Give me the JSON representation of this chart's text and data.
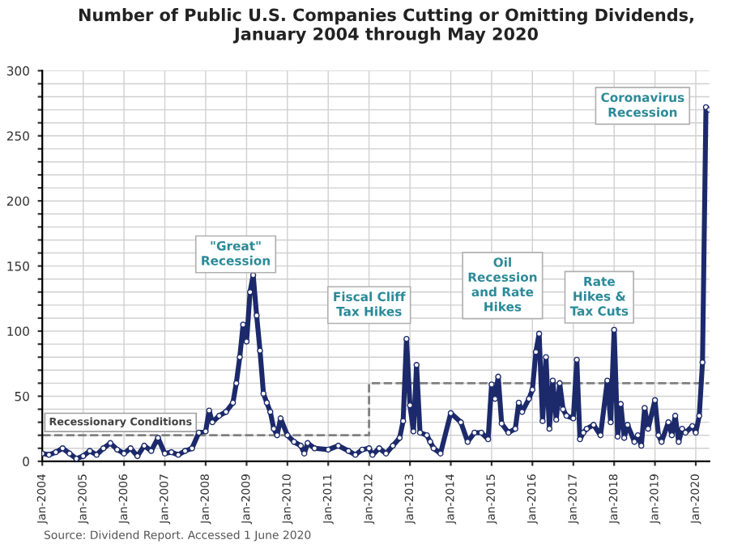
{
  "chart_data": {
    "type": "line",
    "title": "Number of Public U.S. Companies Cutting or Omitting Dividends,\nJanuary 2004 through May 2020",
    "xlim": [
      "2004-01",
      "2020-05"
    ],
    "xticks": [
      {
        "value": "2004-01",
        "label": "Jan-2004"
      },
      {
        "value": "2005-01",
        "label": "Jan-2005"
      },
      {
        "value": "2006-01",
        "label": "Jan-2006"
      },
      {
        "value": "2007-01",
        "label": "Jan-2007"
      },
      {
        "value": "2008-01",
        "label": "Jan-2008"
      },
      {
        "value": "2009-01",
        "label": "Jan-2009"
      },
      {
        "value": "2010-01",
        "label": "Jan-2010"
      },
      {
        "value": "2011-01",
        "label": "Jan-2011"
      },
      {
        "value": "2012-01",
        "label": "Jan-2012"
      },
      {
        "value": "2013-01",
        "label": "Jan-2013"
      },
      {
        "value": "2014-01",
        "label": "Jan-2014"
      },
      {
        "value": "2015-01",
        "label": "Jan-2015"
      },
      {
        "value": "2016-01",
        "label": "Jan-2016"
      },
      {
        "value": "2017-01",
        "label": "Jan-2017"
      },
      {
        "value": "2018-01",
        "label": "Jan-2018"
      },
      {
        "value": "2019-01",
        "label": "Jan-2019"
      },
      {
        "value": "2020-01",
        "label": "Jan-2020"
      }
    ],
    "ylim": [
      0,
      300
    ],
    "yticks": [
      0,
      {
        "value": 10,
        "label": null
      },
      {
        "value": 20,
        "label": null
      },
      {
        "value": 30,
        "label": null
      },
      {
        "value": 40,
        "label": null
      },
      50,
      {
        "value": 60,
        "label": null
      },
      {
        "value": 70,
        "label": null
      },
      {
        "value": 80,
        "label": null
      },
      {
        "value": 90,
        "label": null
      },
      100,
      {
        "value": 110,
        "label": null
      },
      {
        "value": 120,
        "label": null
      },
      {
        "value": 130,
        "label": null
      },
      {
        "value": 140,
        "label": null
      },
      150,
      {
        "value": 160,
        "label": null
      },
      {
        "value": 170,
        "label": null
      },
      {
        "value": 180,
        "label": null
      },
      {
        "value": 190,
        "label": null
      },
      200,
      {
        "value": 210,
        "label": null
      },
      {
        "value": 220,
        "label": null
      },
      {
        "value": 230,
        "label": null
      },
      {
        "value": 240,
        "label": null
      },
      250,
      {
        "value": 260,
        "label": null
      },
      {
        "value": 270,
        "label": null
      },
      {
        "value": 280,
        "label": null
      },
      {
        "value": 290,
        "label": null
      },
      300
    ],
    "grid": true,
    "series": [
      {
        "color": "#1c2a6b",
        "marker": "circle",
        "line_style": "solid",
        "x": [
          "2004-01",
          "2004-03",
          "2004-05",
          "2004-07",
          "2004-09",
          "2004-11",
          "2005-01",
          "2005-03",
          "2005-05",
          "2005-07",
          "2005-09",
          "2005-11",
          "2006-01",
          "2006-03",
          "2006-05",
          "2006-07",
          "2006-09",
          "2006-11",
          "2007-01",
          "2007-03",
          "2007-05",
          "2007-07",
          "2007-09",
          "2007-11",
          "2008-01",
          "2008-02",
          "2008-03",
          "2008-05",
          "2008-07",
          "2008-09",
          "2008-10",
          "2008-11",
          "2008-12",
          "2009-01",
          "2009-02",
          "2009-03",
          "2009-04",
          "2009-05",
          "2009-06",
          "2009-07",
          "2009-08",
          "2009-09",
          "2009-10",
          "2009-11",
          "2010-01",
          "2010-03",
          "2010-05",
          "2010-06",
          "2010-07",
          "2010-09",
          "2011-01",
          "2011-04",
          "2011-07",
          "2011-09",
          "2011-11",
          "2012-01",
          "2012-02",
          "2012-04",
          "2012-06",
          "2012-08",
          "2012-10",
          "2012-11",
          "2012-12",
          "2013-01",
          "2013-02",
          "2013-03",
          "2013-04",
          "2013-06",
          "2013-07",
          "2013-08",
          "2013-10",
          "2014-01",
          "2014-04",
          "2014-06",
          "2014-08",
          "2014-10",
          "2014-12",
          "2015-01",
          "2015-02",
          "2015-03",
          "2015-04",
          "2015-06",
          "2015-08",
          "2015-09",
          "2015-10",
          "2015-12",
          "2016-01",
          "2016-02",
          "2016-03",
          "2016-04",
          "2016-05",
          "2016-06",
          "2016-07",
          "2016-08",
          "2016-09",
          "2016-10",
          "2016-11",
          "2017-01",
          "2017-02",
          "2017-03",
          "2017-04",
          "2017-05",
          "2017-07",
          "2017-09",
          "2017-11",
          "2017-12",
          "2018-01",
          "2018-02",
          "2018-03",
          "2018-04",
          "2018-05",
          "2018-07",
          "2018-08",
          "2018-09",
          "2018-10",
          "2018-11",
          "2019-01",
          "2019-02",
          "2019-03",
          "2019-05",
          "2019-06",
          "2019-07",
          "2019-08",
          "2019-09",
          "2019-10",
          "2019-12",
          "2020-01",
          "2020-02",
          "2020-03",
          "2020-04",
          "2020-05"
        ],
        "values": [
          6,
          5,
          7,
          10,
          6,
          2,
          4,
          8,
          5,
          10,
          14,
          9,
          6,
          10,
          4,
          12,
          8,
          18,
          6,
          7,
          5,
          8,
          10,
          22,
          23,
          39,
          30,
          35,
          38,
          45,
          60,
          80,
          105,
          92,
          130,
          143,
          112,
          85,
          52,
          45,
          38,
          25,
          20,
          33,
          20,
          15,
          12,
          6,
          14,
          10,
          9,
          12,
          8,
          5,
          9,
          10,
          5,
          10,
          6,
          12,
          18,
          31,
          94,
          43,
          23,
          74,
          22,
          20,
          15,
          10,
          6,
          37,
          30,
          15,
          22,
          22,
          17,
          59,
          48,
          65,
          29,
          22,
          25,
          45,
          38,
          48,
          55,
          84,
          98,
          31,
          80,
          25,
          62,
          32,
          60,
          40,
          35,
          33,
          78,
          17,
          22,
          25,
          28,
          20,
          62,
          30,
          101,
          19,
          44,
          18,
          28,
          15,
          20,
          12,
          41,
          25,
          47,
          20,
          15,
          30,
          20,
          35,
          15,
          25,
          22,
          27,
          22,
          35,
          76,
          272,
          270
        ]
      },
      {
        "type": "step",
        "name": "Recessionary Conditions",
        "color": "#808080",
        "marker": "none",
        "line_style": "dashed",
        "x": [
          "2004-01",
          "2012-01",
          "2020-05"
        ],
        "values": [
          20,
          60,
          60
        ]
      }
    ],
    "annotations": [
      "\"Great\"\nRecession",
      "Fiscal Cliff\nTax Hikes",
      "Oil\nRecession\nand Rate\nHikes",
      "Rate\nHikes &\nTax Cuts",
      "Coronavirus\nRecession",
      "Source: Dividend Report. Accessed 1 June 2020"
    ]
  }
}
